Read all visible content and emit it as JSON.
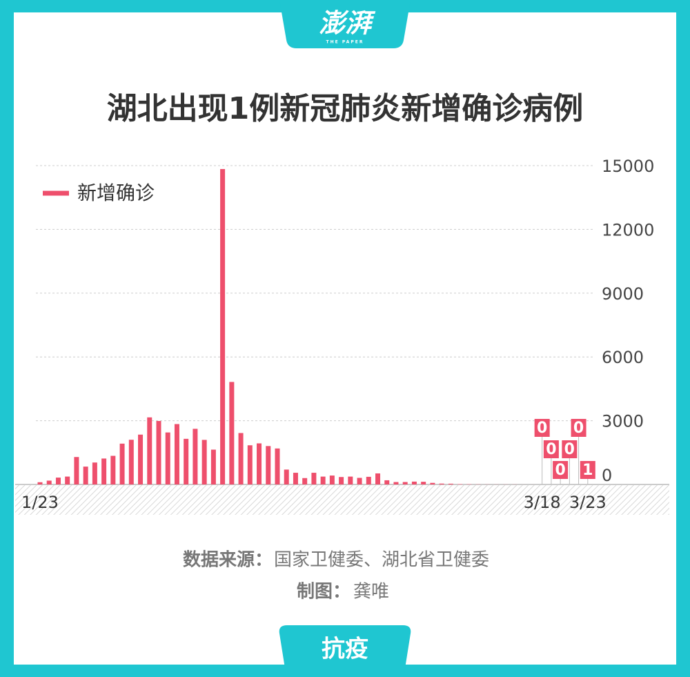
{
  "logo": {
    "text": "澎湃",
    "subtext": "THE PAPER"
  },
  "footer_tab": "抗疫",
  "source": {
    "label": "数据来源：",
    "value": "国家卫健委、湖北省卫健委"
  },
  "credit": {
    "label": "制图：",
    "value": "龚唯"
  },
  "chart_data": {
    "type": "bar",
    "title": "湖北出现1例新冠肺炎新增确诊病例",
    "legend_position": "upper left",
    "series": [
      {
        "name": "新增确诊",
        "color": "#ee4f6c",
        "values": [
          105,
          180,
          323,
          371,
          1291,
          840,
          1032,
          1220,
          1347,
          1921,
          2103,
          2345,
          3156,
          2987,
          2447,
          2841,
          2147,
          2618,
          2097,
          1638,
          14840,
          4823,
          2420,
          1843,
          1933,
          1807,
          1693,
          700,
          550,
          300,
          550,
          370,
          420,
          350,
          370,
          310,
          360,
          520,
          196,
          114,
          115,
          134,
          126,
          74,
          41,
          36,
          17,
          13,
          8,
          5,
          4,
          4,
          4,
          1,
          1,
          0,
          0,
          0,
          0,
          0,
          1
        ]
      }
    ],
    "categories": [
      "1/23",
      null,
      null,
      null,
      null,
      null,
      null,
      null,
      null,
      null,
      null,
      null,
      null,
      null,
      null,
      null,
      null,
      null,
      null,
      null,
      null,
      null,
      null,
      null,
      null,
      null,
      null,
      null,
      null,
      null,
      null,
      null,
      null,
      null,
      null,
      null,
      null,
      null,
      null,
      null,
      null,
      null,
      null,
      null,
      null,
      null,
      null,
      null,
      null,
      null,
      null,
      null,
      null,
      null,
      null,
      "3/18",
      null,
      null,
      null,
      null,
      "3/23"
    ],
    "labeled_points": [
      55,
      56,
      57,
      58,
      59,
      60
    ],
    "ylim": [
      0,
      15000
    ],
    "yticks": [
      0,
      3000,
      6000,
      9000,
      12000,
      15000
    ],
    "y_axis_side": "right",
    "grid": true
  }
}
